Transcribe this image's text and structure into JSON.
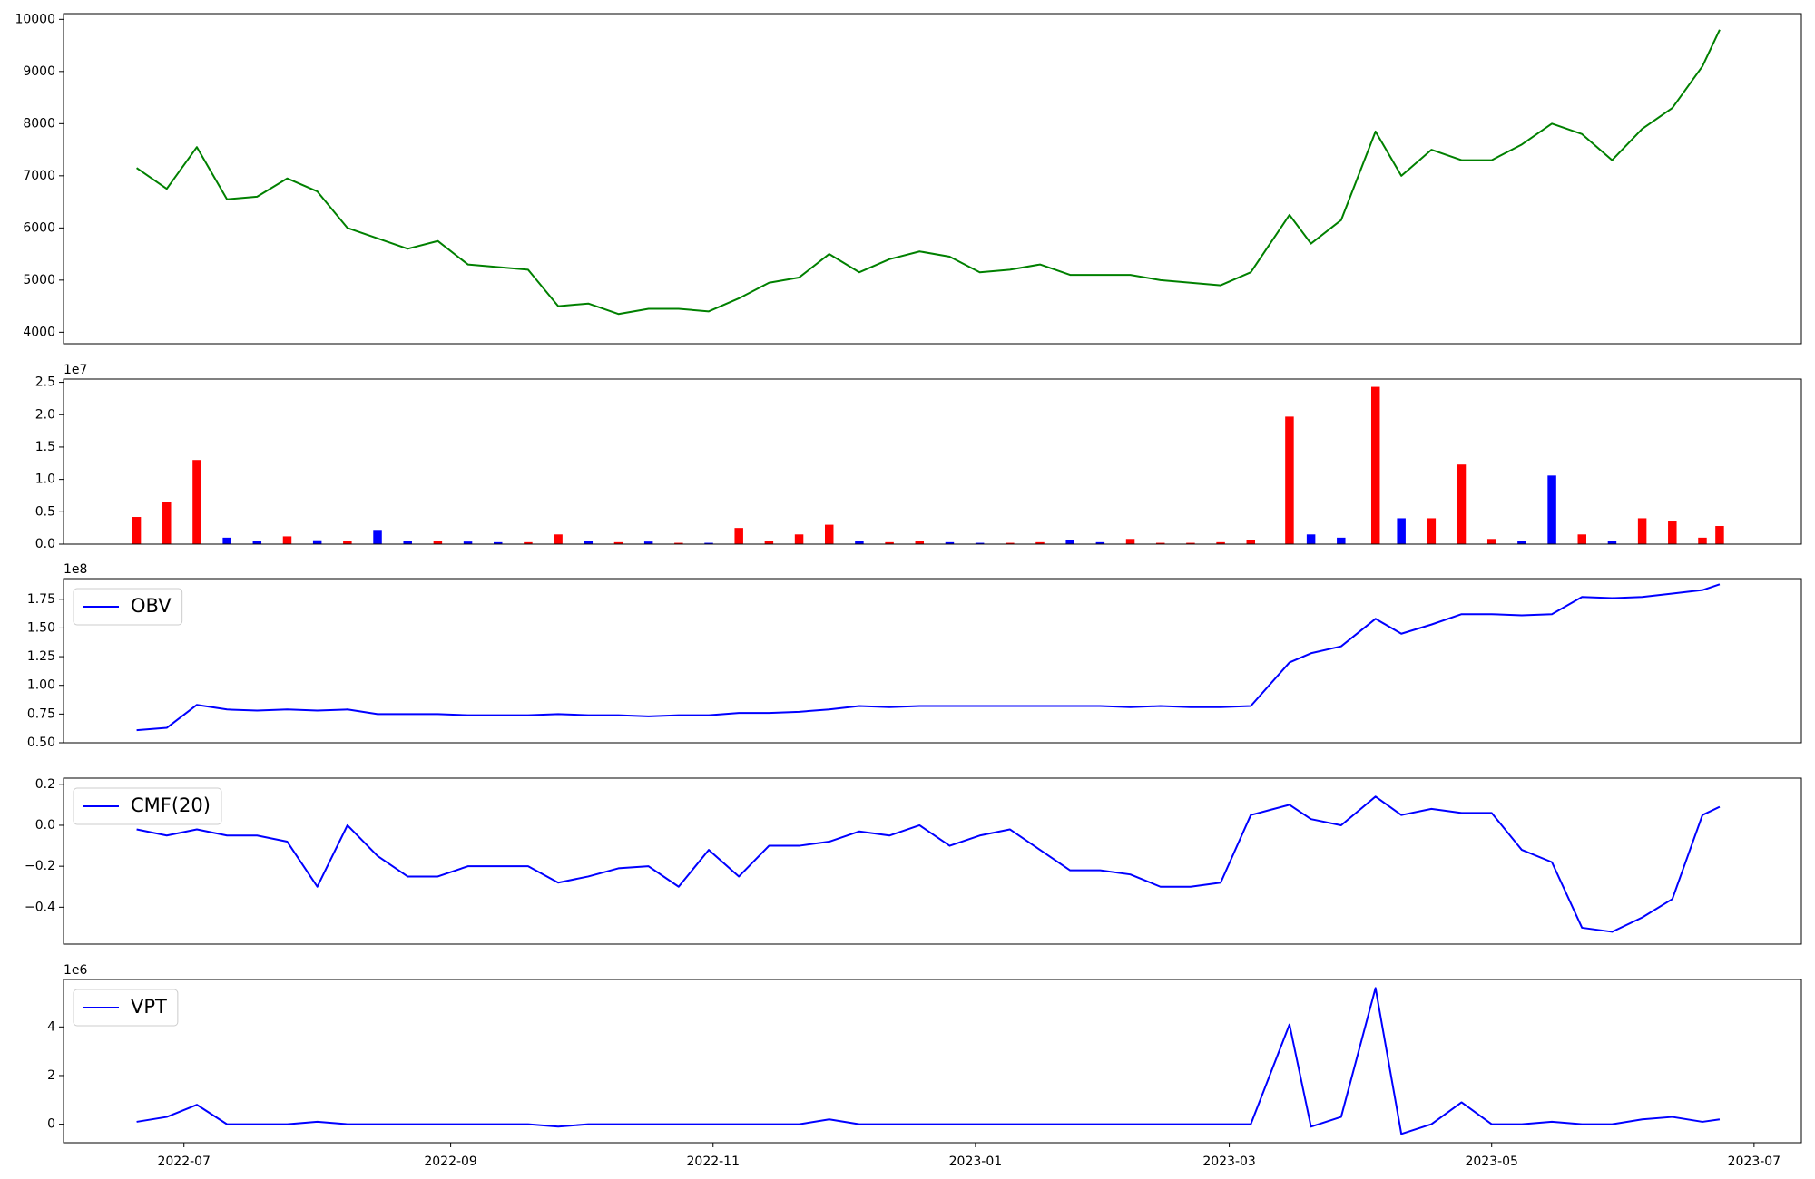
{
  "chart_data": [
    {
      "type": "line",
      "color": "green",
      "x": [
        19163,
        19170,
        19177,
        19184,
        19191,
        19198,
        19205,
        19212,
        19219,
        19226,
        19233,
        19240,
        19247,
        19254,
        19261,
        19268,
        19275,
        19282,
        19289,
        19296,
        19303,
        19310,
        19317,
        19324,
        19331,
        19338,
        19345,
        19352,
        19359,
        19366,
        19373,
        19380,
        19387,
        19394,
        19401,
        19408,
        19415,
        19422,
        19431,
        19436,
        19443,
        19451,
        19457,
        19464,
        19471,
        19478,
        19485,
        19492,
        19499,
        19506,
        19513,
        19520,
        19527,
        19531
      ],
      "values": [
        7150,
        6750,
        7550,
        6550,
        6600,
        6950,
        6700,
        6000,
        5800,
        5600,
        5750,
        5300,
        5250,
        5200,
        4500,
        4550,
        4350,
        4450,
        4450,
        4400,
        4650,
        4950,
        5050,
        5500,
        5150,
        5400,
        5550,
        5450,
        5150,
        5200,
        5300,
        5100,
        5100,
        5100,
        5000,
        4950,
        4900,
        5150,
        6250,
        5700,
        6150,
        7850,
        7000,
        7500,
        7300,
        7300,
        7600,
        8000,
        7800,
        7300,
        7900,
        8300,
        9100,
        9800
      ],
      "xlim": [
        19146,
        19550
      ],
      "ylim": [
        3780,
        10110
      ],
      "yticks": [
        4000,
        5000,
        6000,
        7000,
        8000,
        9000,
        10000
      ]
    },
    {
      "type": "bar",
      "offset_label": "1e7",
      "x": [
        19163,
        19170,
        19177,
        19184,
        19191,
        19198,
        19205,
        19212,
        19219,
        19226,
        19233,
        19240,
        19247,
        19254,
        19261,
        19268,
        19275,
        19282,
        19289,
        19296,
        19303,
        19310,
        19317,
        19324,
        19331,
        19338,
        19345,
        19352,
        19359,
        19366,
        19373,
        19380,
        19387,
        19394,
        19401,
        19408,
        19415,
        19422,
        19431,
        19436,
        19443,
        19451,
        19457,
        19464,
        19471,
        19478,
        19485,
        19492,
        19499,
        19506,
        19513,
        19520,
        19527,
        19531
      ],
      "values": [
        0.42,
        0.65,
        1.3,
        0.1,
        0.05,
        0.12,
        0.06,
        0.05,
        0.22,
        0.05,
        0.05,
        0.04,
        0.03,
        0.03,
        0.15,
        0.05,
        0.03,
        0.04,
        0.02,
        0.02,
        0.25,
        0.05,
        0.15,
        0.3,
        0.05,
        0.03,
        0.05,
        0.03,
        0.02,
        0.02,
        0.03,
        0.07,
        0.03,
        0.08,
        0.02,
        0.02,
        0.03,
        0.07,
        1.97,
        0.15,
        0.1,
        2.43,
        0.4,
        0.4,
        1.23,
        0.08,
        0.05,
        1.06,
        0.15,
        0.05,
        0.4,
        0.35,
        0.1,
        0.28
      ],
      "colors": [
        "red",
        "red",
        "red",
        "blue",
        "blue",
        "red",
        "blue",
        "red",
        "blue",
        "blue",
        "red",
        "blue",
        "blue",
        "red",
        "red",
        "blue",
        "red",
        "blue",
        "red",
        "blue",
        "red",
        "red",
        "red",
        "red",
        "blue",
        "red",
        "red",
        "blue",
        "blue",
        "red",
        "red",
        "blue",
        "blue",
        "red",
        "red",
        "red",
        "red",
        "red",
        "red",
        "blue",
        "blue",
        "red",
        "blue",
        "red",
        "red",
        "red",
        "blue",
        "blue",
        "red",
        "blue",
        "red",
        "red",
        "red",
        "red"
      ],
      "xlim": [
        19146,
        19550
      ],
      "ylim": [
        0,
        2.55
      ],
      "yticks": [
        {
          "value": 0,
          "label": "0.0"
        },
        0.5,
        {
          "value": 1,
          "label": "1.0"
        },
        1.5,
        {
          "value": 2,
          "label": "2.0"
        },
        2.5
      ]
    },
    {
      "type": "line",
      "offset_label": "1e8",
      "legend": "upper left",
      "x": [
        19163,
        19170,
        19177,
        19184,
        19191,
        19198,
        19205,
        19212,
        19219,
        19226,
        19233,
        19240,
        19247,
        19254,
        19261,
        19268,
        19275,
        19282,
        19289,
        19296,
        19303,
        19310,
        19317,
        19324,
        19331,
        19338,
        19345,
        19352,
        19359,
        19366,
        19373,
        19380,
        19387,
        19394,
        19401,
        19408,
        19415,
        19422,
        19431,
        19436,
        19443,
        19451,
        19457,
        19464,
        19471,
        19478,
        19485,
        19492,
        19499,
        19506,
        19513,
        19520,
        19527,
        19531
      ],
      "series": [
        {
          "name": "OBV",
          "color": "blue",
          "values": [
            0.61,
            0.63,
            0.83,
            0.79,
            0.78,
            0.79,
            0.78,
            0.79,
            0.75,
            0.75,
            0.75,
            0.74,
            0.74,
            0.74,
            0.75,
            0.74,
            0.74,
            0.73,
            0.74,
            0.74,
            0.76,
            0.76,
            0.77,
            0.79,
            0.82,
            0.81,
            0.82,
            0.82,
            0.82,
            0.82,
            0.82,
            0.82,
            0.82,
            0.81,
            0.82,
            0.81,
            0.81,
            0.82,
            1.2,
            1.28,
            1.34,
            1.58,
            1.45,
            1.53,
            1.62,
            1.62,
            1.61,
            1.62,
            1.77,
            1.76,
            1.77,
            1.8,
            1.83,
            1.88
          ]
        }
      ],
      "xlim": [
        19146,
        19550
      ],
      "ylim": [
        0.5,
        1.93
      ],
      "yticks": [
        {
          "value": 0.5,
          "label": "0.50"
        },
        0.75,
        {
          "value": 1,
          "label": "1.00"
        },
        1.25,
        {
          "value": 1.5,
          "label": "1.50"
        },
        1.75
      ]
    },
    {
      "type": "line",
      "legend": "upper left",
      "x": [
        19163,
        19170,
        19177,
        19184,
        19191,
        19198,
        19205,
        19212,
        19219,
        19226,
        19233,
        19240,
        19247,
        19254,
        19261,
        19268,
        19275,
        19282,
        19289,
        19296,
        19303,
        19310,
        19317,
        19324,
        19331,
        19338,
        19345,
        19352,
        19359,
        19366,
        19373,
        19380,
        19387,
        19394,
        19401,
        19408,
        19415,
        19422,
        19431,
        19436,
        19443,
        19451,
        19457,
        19464,
        19471,
        19478,
        19485,
        19492,
        19499,
        19506,
        19513,
        19520,
        19527,
        19531
      ],
      "series": [
        {
          "name": "CMF(20)",
          "color": "blue",
          "values": [
            -0.02,
            -0.05,
            -0.02,
            -0.05,
            -0.05,
            -0.08,
            -0.3,
            0.0,
            -0.15,
            -0.25,
            -0.25,
            -0.2,
            -0.2,
            -0.2,
            -0.28,
            -0.25,
            -0.21,
            -0.2,
            -0.3,
            -0.12,
            -0.25,
            -0.1,
            -0.1,
            -0.08,
            -0.03,
            -0.05,
            0.0,
            -0.1,
            -0.05,
            -0.02,
            -0.12,
            -0.22,
            -0.22,
            -0.24,
            -0.3,
            -0.3,
            -0.28,
            0.05,
            0.1,
            0.03,
            0.0,
            0.14,
            0.05,
            0.08,
            0.06,
            0.06,
            -0.12,
            -0.18,
            -0.5,
            -0.52,
            -0.45,
            -0.36,
            0.05,
            0.09
          ]
        }
      ],
      "xlim": [
        19146,
        19550
      ],
      "ylim": [
        -0.58,
        0.23
      ],
      "yticks": [
        {
          "value": -0.4,
          "label": "−0.4"
        },
        {
          "value": -0.2,
          "label": "−0.2"
        },
        {
          "value": 0,
          "label": "0.0"
        },
        0.2
      ]
    },
    {
      "type": "line",
      "offset_label": "1e6",
      "legend": "upper left",
      "x": [
        19163,
        19170,
        19177,
        19184,
        19191,
        19198,
        19205,
        19212,
        19219,
        19226,
        19233,
        19240,
        19247,
        19254,
        19261,
        19268,
        19275,
        19282,
        19289,
        19296,
        19303,
        19310,
        19317,
        19324,
        19331,
        19338,
        19345,
        19352,
        19359,
        19366,
        19373,
        19380,
        19387,
        19394,
        19401,
        19408,
        19415,
        19422,
        19431,
        19436,
        19443,
        19451,
        19457,
        19464,
        19471,
        19478,
        19485,
        19492,
        19499,
        19506,
        19513,
        19520,
        19527,
        19531
      ],
      "series": [
        {
          "name": "VPT",
          "color": "blue",
          "values": [
            0.1,
            0.3,
            0.8,
            0.0,
            0.0,
            0.0,
            0.1,
            0.0,
            0.0,
            0.0,
            0,
            0,
            0,
            0,
            -0.1,
            0,
            0,
            0,
            0,
            0,
            0,
            0,
            0,
            0.2,
            0,
            0,
            0,
            0,
            0,
            0,
            0,
            0,
            0,
            0,
            0,
            0,
            0,
            0,
            4.1,
            -0.1,
            0.3,
            5.6,
            -0.4,
            0.0,
            0.9,
            0.0,
            0.0,
            0.1,
            0.0,
            0.0,
            0.2,
            0.3,
            0.1,
            0.2
          ]
        }
      ],
      "xlim": [
        19146,
        19550
      ],
      "ylim": [
        -0.76,
        5.95
      ],
      "yticks": [
        0,
        2,
        4
      ],
      "xticks": [
        {
          "value": 19174,
          "label": "2022-07"
        },
        {
          "value": 19236,
          "label": "2022-09"
        },
        {
          "value": 19297,
          "label": "2022-11"
        },
        {
          "value": 19358,
          "label": "2023-01"
        },
        {
          "value": 19417,
          "label": "2023-03"
        },
        {
          "value": 19478,
          "label": "2023-05"
        },
        {
          "value": 19539,
          "label": "2023-07"
        }
      ]
    }
  ]
}
